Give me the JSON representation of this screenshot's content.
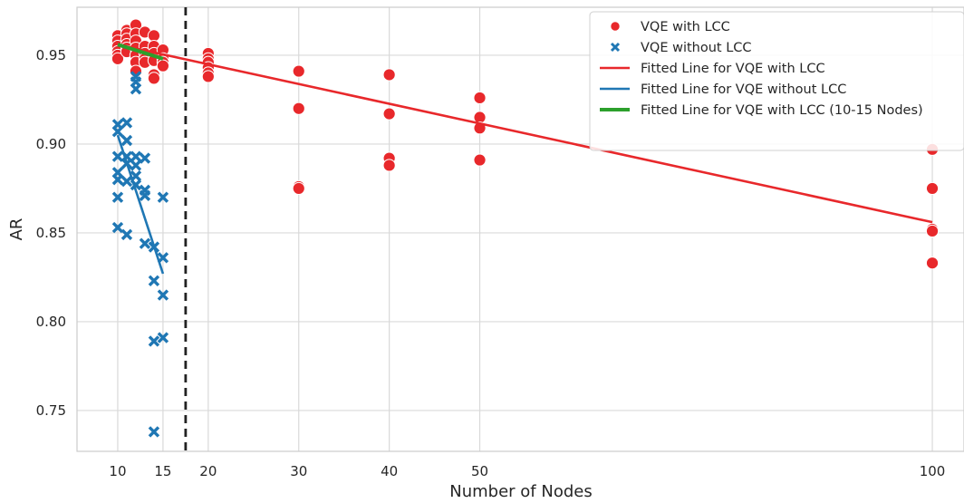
{
  "chart_data": {
    "type": "scatter",
    "xlabel": "Number of Nodes",
    "ylabel": "AR",
    "xlim": [
      5.5,
      103.5
    ],
    "ylim": [
      0.727,
      0.977
    ],
    "x_ticks": [
      10,
      15,
      20,
      30,
      40,
      50,
      100
    ],
    "x_tick_labels": [
      "10",
      "15",
      "20",
      "30",
      "40",
      "50",
      "100"
    ],
    "y_ticks": [
      0.75,
      0.8,
      0.85,
      0.9,
      0.95
    ],
    "y_tick_labels": [
      "0.75",
      "0.80",
      "0.85",
      "0.90",
      "0.95"
    ],
    "grid": true,
    "legend_position": "top-right",
    "colors": {
      "lcc": "#e8282b",
      "no_lcc": "#1f77b4",
      "fit_small": "#2ca02c",
      "vline": "#222222",
      "grid": "#d9d9d9"
    },
    "vertical_line": {
      "x": 17.5,
      "style": "dashed"
    },
    "series": [
      {
        "name": "VQE with LCC",
        "marker": "circle",
        "points": [
          [
            10,
            0.961
          ],
          [
            10,
            0.958
          ],
          [
            10,
            0.955
          ],
          [
            10,
            0.952
          ],
          [
            10,
            0.95
          ],
          [
            10,
            0.948
          ],
          [
            11,
            0.964
          ],
          [
            11,
            0.962
          ],
          [
            11,
            0.959
          ],
          [
            11,
            0.956
          ],
          [
            11,
            0.954
          ],
          [
            11,
            0.952
          ],
          [
            12,
            0.967
          ],
          [
            12,
            0.962
          ],
          [
            12,
            0.958
          ],
          [
            12,
            0.954
          ],
          [
            12,
            0.95
          ],
          [
            12,
            0.946
          ],
          [
            12,
            0.941
          ],
          [
            13,
            0.963
          ],
          [
            13,
            0.955
          ],
          [
            13,
            0.951
          ],
          [
            13,
            0.948
          ],
          [
            13,
            0.946
          ],
          [
            14,
            0.961
          ],
          [
            14,
            0.955
          ],
          [
            14,
            0.951
          ],
          [
            14,
            0.947
          ],
          [
            14,
            0.939
          ],
          [
            14,
            0.937
          ],
          [
            15,
            0.953
          ],
          [
            15,
            0.948
          ],
          [
            15,
            0.946
          ],
          [
            15,
            0.944
          ],
          [
            20,
            0.951
          ],
          [
            20,
            0.948
          ],
          [
            20,
            0.946
          ],
          [
            20,
            0.943
          ],
          [
            20,
            0.94
          ],
          [
            20,
            0.938
          ],
          [
            30,
            0.941
          ],
          [
            30,
            0.92
          ],
          [
            30,
            0.876
          ],
          [
            30,
            0.875
          ],
          [
            40,
            0.939
          ],
          [
            40,
            0.917
          ],
          [
            40,
            0.892
          ],
          [
            40,
            0.888
          ],
          [
            50,
            0.926
          ],
          [
            50,
            0.915
          ],
          [
            50,
            0.909
          ],
          [
            50,
            0.891
          ],
          [
            100,
            0.897
          ],
          [
            100,
            0.875
          ],
          [
            100,
            0.852
          ],
          [
            100,
            0.851
          ],
          [
            100,
            0.833
          ]
        ]
      },
      {
        "name": "VQE without LCC",
        "marker": "x",
        "points": [
          [
            10,
            0.911
          ],
          [
            10,
            0.907
          ],
          [
            10,
            0.893
          ],
          [
            10,
            0.884
          ],
          [
            10,
            0.88
          ],
          [
            10,
            0.87
          ],
          [
            10,
            0.853
          ],
          [
            11,
            0.912
          ],
          [
            11,
            0.902
          ],
          [
            11,
            0.893
          ],
          [
            11,
            0.889
          ],
          [
            11,
            0.879
          ],
          [
            11,
            0.849
          ],
          [
            12,
            0.938
          ],
          [
            12,
            0.935
          ],
          [
            12,
            0.931
          ],
          [
            12,
            0.893
          ],
          [
            12,
            0.888
          ],
          [
            12,
            0.882
          ],
          [
            12,
            0.877
          ],
          [
            13,
            0.892
          ],
          [
            13,
            0.874
          ],
          [
            13,
            0.871
          ],
          [
            13,
            0.844
          ],
          [
            14,
            0.842
          ],
          [
            14,
            0.823
          ],
          [
            14,
            0.789
          ],
          [
            14,
            0.738
          ],
          [
            15,
            0.87
          ],
          [
            15,
            0.836
          ],
          [
            15,
            0.815
          ],
          [
            15,
            0.791
          ]
        ]
      }
    ],
    "fitted_lines": [
      {
        "name": "Fitted Line for VQE with LCC",
        "color": "#e8282b",
        "x": [
          10,
          100
        ],
        "y": [
          0.956,
          0.856
        ]
      },
      {
        "name": "Fitted Line for VQE without LCC",
        "color": "#1f77b4",
        "x": [
          10,
          15
        ],
        "y": [
          0.905,
          0.827
        ]
      },
      {
        "name": "Fitted Line for VQE with LCC (10-15 Nodes)",
        "color": "#2ca02c",
        "x": [
          10,
          15
        ],
        "y": [
          0.956,
          0.948
        ]
      }
    ],
    "legend": [
      {
        "label": "VQE with LCC",
        "symbol": "circle",
        "color": "#e8282b"
      },
      {
        "label": "VQE without LCC",
        "symbol": "x",
        "color": "#1f77b4"
      },
      {
        "label": "Fitted Line for VQE with LCC",
        "symbol": "line",
        "color": "#e8282b"
      },
      {
        "label": "Fitted Line for VQE without LCC",
        "symbol": "line",
        "color": "#1f77b4"
      },
      {
        "label": "Fitted Line for VQE with LCC (10-15 Nodes)",
        "symbol": "line-thick",
        "color": "#2ca02c"
      }
    ]
  }
}
